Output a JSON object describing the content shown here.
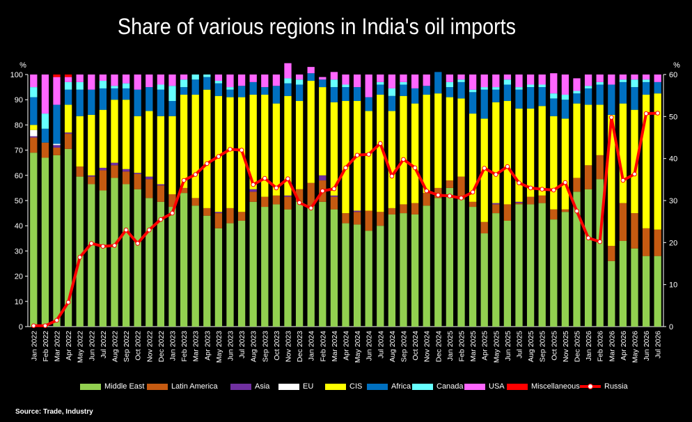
{
  "chart_data": {
    "type": "bar",
    "title": "Share of various regions in India's oil imports",
    "stacked": true,
    "left_axis_unit": "%",
    "right_axis_unit": "%",
    "ylim": [
      0,
      100
    ],
    "y2lim": [
      0,
      60
    ],
    "y_ticks": [
      0,
      10,
      20,
      30,
      40,
      50,
      60,
      70,
      80,
      90,
      100
    ],
    "y2_ticks": [
      0,
      10,
      20,
      30,
      40,
      50,
      60
    ],
    "categories": [
      "Jan 2022",
      "Feb 2022",
      "Mar 2022",
      "Apr 2022",
      "May 2022",
      "Jun 2022",
      "Jul 2022",
      "Aug 2022",
      "Sep 2022",
      "Oct 2022",
      "Nov 2022",
      "Dec 2022",
      "Jan 2023",
      "Feb 2023",
      "Mar 2023",
      "Apr 2023",
      "May 2023",
      "Jun 2023",
      "Jul 2023",
      "Aug 2023",
      "Sep 2023",
      "Oct 2023",
      "Nov 2023",
      "Dec 2023",
      "Jan 2024",
      "Feb 2024",
      "Mar 2024",
      "Apr 2024",
      "May 2024",
      "Jun 2024",
      "Jul 2024",
      "Aug 2024",
      "Sep 2024",
      "Oct 2024",
      "Nov 2024",
      "Dec 2024",
      "Jan 2025",
      "Feb 2025",
      "Mar 2025",
      "Apr 2025",
      "May 2025",
      "Jun 2025",
      "Jul 2025",
      "Aug 2025",
      "Sep 2025",
      "Oct 2025",
      "Nov 2025",
      "Dec 2025",
      "Jan 2026",
      "Feb 2026",
      "Mar 2026",
      "Apr 2026",
      "May 2026",
      "Jun 2026",
      "Jul 2026"
    ],
    "series": [
      {
        "name": "Middle East",
        "color": "#92d050",
        "values": [
          69,
          67,
          68,
          70.5,
          59.5,
          56.5,
          54,
          59,
          56.5,
          54.5,
          51,
          49.5,
          47.5,
          53,
          48,
          44,
          39,
          41,
          42,
          49.5,
          47.5,
          48.5,
          46.5,
          49.5,
          48,
          49.5,
          46.5,
          41,
          40.5,
          38,
          40,
          44.5,
          45,
          44.5,
          48,
          51,
          55,
          50.5,
          47.5,
          37,
          45,
          42,
          48.5,
          48.5,
          49,
          42.5,
          45.5,
          53.5,
          54.5,
          58.5,
          26,
          34,
          31,
          28,
          28
        ]
      },
      {
        "name": "Latin America",
        "color": "#c55a11",
        "values": [
          6,
          6,
          3,
          6,
          4,
          3,
          8,
          5,
          5,
          6,
          7.5,
          6.5,
          5,
          2,
          3,
          3,
          6,
          6,
          3.5,
          4,
          4,
          3.5,
          5,
          5,
          9,
          8.5,
          5,
          4,
          5,
          8,
          5.5,
          2.5,
          3.5,
          4.5,
          5,
          4,
          3,
          9,
          2,
          4.5,
          3.5,
          6.5,
          0.5,
          3,
          3,
          4,
          1,
          5.5,
          9.5,
          9.5,
          6,
          15,
          14,
          11,
          10.5
        ]
      },
      {
        "name": "Asia",
        "color": "#7030a0",
        "values": [
          0.5,
          0,
          1,
          0.5,
          0,
          0.5,
          1,
          1,
          1,
          0.5,
          1,
          0.5,
          0,
          0,
          0,
          0,
          0.5,
          0,
          0,
          1,
          0,
          0,
          0.5,
          0,
          0,
          2,
          0.5,
          0,
          0.5,
          0,
          0,
          0,
          0,
          0,
          0,
          0,
          0,
          0,
          0,
          0,
          0.5,
          0,
          0.5,
          0,
          0,
          0,
          0,
          0,
          0,
          0,
          0,
          0,
          0,
          0,
          0
        ]
      },
      {
        "name": "EU",
        "color": "#ffffff",
        "values": [
          2.5,
          0,
          0.5,
          0,
          0,
          0,
          0,
          0,
          0,
          0,
          0,
          0,
          0,
          0,
          0,
          0,
          0,
          0,
          0,
          0,
          0,
          0,
          0,
          0,
          0,
          0,
          0,
          0,
          0,
          0,
          0,
          0,
          0,
          0,
          0,
          0,
          0,
          0,
          0,
          0,
          0,
          0,
          0,
          0,
          0,
          0,
          0,
          0,
          0,
          0,
          0,
          0,
          0,
          0,
          0
        ]
      },
      {
        "name": "CIS",
        "color": "#ffff00",
        "values": [
          2,
          0,
          0,
          11,
          20,
          24,
          23,
          25,
          27.5,
          22.5,
          26,
          27,
          31,
          37,
          41,
          47,
          46,
          44,
          45.5,
          37.5,
          40.5,
          36.5,
          39.5,
          35,
          40.5,
          35,
          37,
          44.5,
          43.5,
          39.5,
          46.5,
          38.5,
          43,
          39.5,
          39,
          37.5,
          33,
          31,
          35,
          41,
          40,
          41,
          37,
          35,
          35.5,
          37,
          36,
          29.5,
          24,
          20,
          52,
          39.5,
          41,
          53,
          54
        ]
      },
      {
        "name": "Africa",
        "color": "#0070c0",
        "values": [
          11,
          5.5,
          15.5,
          6,
          10.5,
          10,
          8.5,
          4.5,
          4.5,
          10.5,
          9.5,
          10.5,
          6,
          3,
          6,
          5,
          5,
          3,
          4.5,
          5,
          3,
          7,
          5,
          6.5,
          3,
          3,
          6,
          5.5,
          5.5,
          5.5,
          4,
          6,
          4.5,
          6,
          3.5,
          8.5,
          4,
          6.5,
          8.5,
          11.5,
          5,
          6.5,
          7.5,
          8.5,
          7.5,
          7,
          7.5,
          4,
          6.5,
          8,
          12,
          8.5,
          9,
          5,
          4.5
        ]
      },
      {
        "name": "Canada",
        "color": "#66ffff",
        "values": [
          4,
          6,
          0,
          3,
          3,
          0,
          3,
          1,
          2,
          0,
          0,
          2,
          6,
          3,
          2,
          1,
          1,
          1,
          0,
          0,
          0,
          0,
          2,
          2,
          0,
          0,
          3,
          1,
          0,
          0,
          1,
          3,
          1,
          0,
          0,
          0,
          2,
          1,
          1,
          1,
          1,
          2,
          1,
          1,
          1,
          2,
          2,
          1,
          1,
          1,
          0,
          1,
          3,
          1,
          0
        ]
      },
      {
        "name": "USA",
        "color": "#ff66ff",
        "values": [
          5,
          15.5,
          11,
          2,
          3,
          6,
          2.5,
          4.5,
          3.5,
          6,
          5,
          4,
          4.5,
          2,
          0,
          0,
          2.5,
          5,
          4.5,
          3,
          5,
          4.5,
          6,
          2,
          2.5,
          1,
          3,
          4,
          5,
          9,
          3,
          5.5,
          3,
          5.5,
          4.5,
          0,
          3,
          2,
          6,
          5,
          5,
          2,
          5,
          4,
          4,
          8,
          8,
          5,
          4.5,
          3,
          4,
          2,
          2,
          2,
          3
        ]
      },
      {
        "name": "Miscellaneous",
        "color": "#ff0000",
        "values": [
          0,
          0,
          1,
          1,
          0,
          0,
          0,
          0,
          0,
          0,
          0,
          0,
          0,
          0,
          0,
          0,
          0,
          0,
          0,
          0,
          0,
          0,
          0,
          0,
          0,
          0,
          0,
          0,
          0,
          0,
          0,
          0,
          0,
          0,
          0,
          0,
          0,
          0,
          0,
          0,
          0,
          0,
          0,
          0,
          0,
          0,
          0,
          0,
          0,
          0,
          0,
          0,
          0,
          0,
          0
        ]
      }
    ],
    "line_series": {
      "name": "Russia",
      "color": "#ff0000",
      "axis": "right",
      "values": [
        0.2,
        0.2,
        1.5,
        5.8,
        16.5,
        19.8,
        19.1,
        19.3,
        23,
        19.8,
        23,
        25.5,
        27,
        34.8,
        36.2,
        38.8,
        40.5,
        42.2,
        42,
        33.8,
        35.3,
        33,
        35.2,
        29.5,
        28.2,
        32.3,
        32.8,
        37.8,
        40.8,
        41,
        43.6,
        35.8,
        39.8,
        37.8,
        32.3,
        31.3,
        31.1,
        30.6,
        32,
        37.7,
        36.2,
        38.1,
        34.2,
        33,
        32.7,
        32.5,
        34.3,
        27.5,
        21.1,
        20.2,
        49.8,
        34.8,
        36.3,
        50.7,
        50.8
      ]
    },
    "legend": [
      "Middle East",
      "Latin America",
      "Asia",
      "EU",
      "CIS",
      "Africa",
      "Canada",
      "USA",
      "Miscellaneous",
      "Russia"
    ],
    "legend_position": "bottom",
    "grid": false
  },
  "source": "Source: Trade, Industry"
}
